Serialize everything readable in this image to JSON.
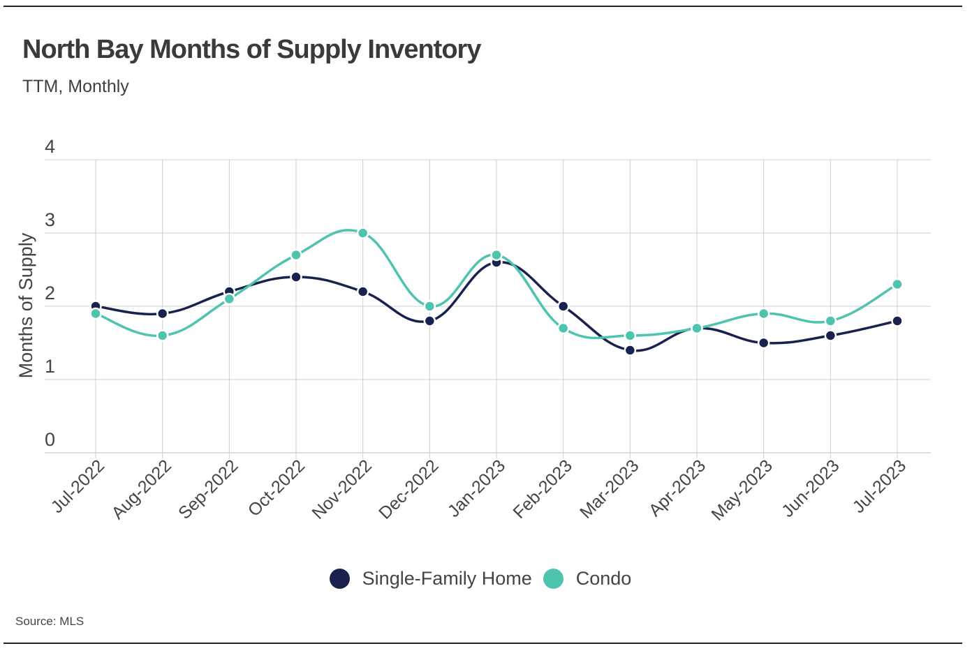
{
  "title": "North Bay Months of Supply Inventory",
  "subtitle": "TTM, Monthly",
  "source": "Source:  MLS",
  "colors": {
    "single_family": "#19214f",
    "condo": "#4ec3ad",
    "grid": "#cfcfcf",
    "baseline": "#bdbdbd"
  },
  "chart_data": {
    "type": "line",
    "title": "North Bay Months of Supply Inventory",
    "subtitle": "TTM, Monthly",
    "xlabel": "",
    "ylabel": "Months of Supply",
    "ylim": [
      0,
      4
    ],
    "yticks": [
      "0",
      "1",
      "2",
      "3",
      "4"
    ],
    "grid": true,
    "legend_position": "bottom-center",
    "categories": [
      "Jul-2022",
      "Aug-2022",
      "Sep-2022",
      "Oct-2022",
      "Nov-2022",
      "Dec-2022",
      "Jan-2023",
      "Feb-2023",
      "Mar-2023",
      "Apr-2023",
      "May-2023",
      "Jun-2023",
      "Jul-2023"
    ],
    "series": [
      {
        "name": "Single-Family Home",
        "color": "#19214f",
        "values": [
          2.0,
          1.9,
          2.2,
          2.4,
          2.2,
          1.8,
          2.6,
          2.0,
          1.4,
          1.7,
          1.5,
          1.6,
          1.8
        ]
      },
      {
        "name": "Condo",
        "color": "#4ec3ad",
        "values": [
          1.9,
          1.6,
          2.1,
          2.7,
          3.0,
          2.0,
          2.7,
          1.7,
          1.6,
          1.7,
          1.9,
          1.8,
          2.3
        ]
      }
    ]
  }
}
